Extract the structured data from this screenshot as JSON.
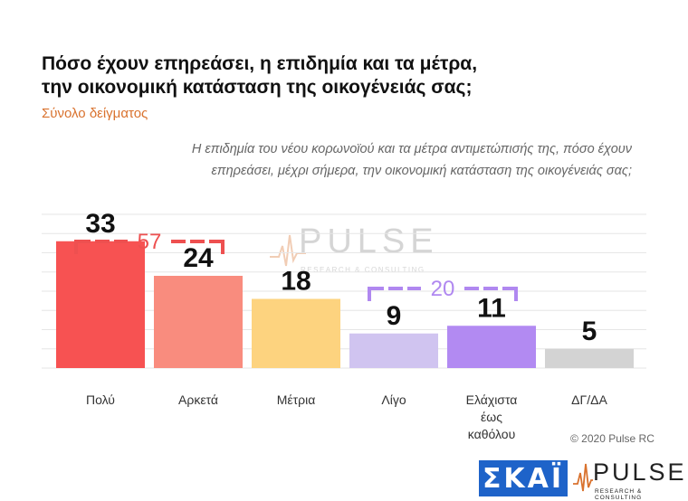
{
  "header": {
    "title_line1": "Πόσο έχουν επηρεάσει, η επιδημία και τα μέτρα,",
    "title_line2": "την οικονομική κατάσταση της οικογένειάς σας;",
    "subtitle": "Σύνολο δείγματος",
    "question_line1": "Η επιδημία του νέου κορωνοϊού και τα μέτρα αντιμετώπισής της, πόσο έχουν",
    "question_line2": "επηρεάσει, μέχρι σήμερα, την οικονομική κατάσταση της οικογένειάς σας;"
  },
  "watermark": {
    "name": "PULSE",
    "tagline": "RESEARCH & CONSULTING"
  },
  "footer": {
    "copyright": "© 2020 Pulse RC",
    "logo_skai": "ΣΚΑΪ",
    "logo_pulse": "PULSE",
    "logo_pulse_sub": "RESEARCH & CONSULTING"
  },
  "chart_data": {
    "type": "bar",
    "categories": [
      [
        "Πολύ"
      ],
      [
        "Αρκετά"
      ],
      [
        "Μέτρια"
      ],
      [
        "Λίγο"
      ],
      [
        "Ελάχιστα",
        "έως",
        "καθόλου"
      ],
      [
        "ΔΓ/ΔΑ"
      ]
    ],
    "values": [
      33,
      24,
      18,
      9,
      11,
      5
    ],
    "colors": [
      "#f75252",
      "#f98c7e",
      "#fdd37f",
      "#d0c4f0",
      "#b28af2",
      "#d3d3d3"
    ],
    "ylim": [
      0,
      40
    ],
    "grid": true,
    "groups": [
      {
        "label": "57",
        "from": 0,
        "to": 1,
        "color": "#ee5050"
      },
      {
        "label": "20",
        "from": 3,
        "to": 4,
        "color": "#b088f0"
      }
    ]
  }
}
